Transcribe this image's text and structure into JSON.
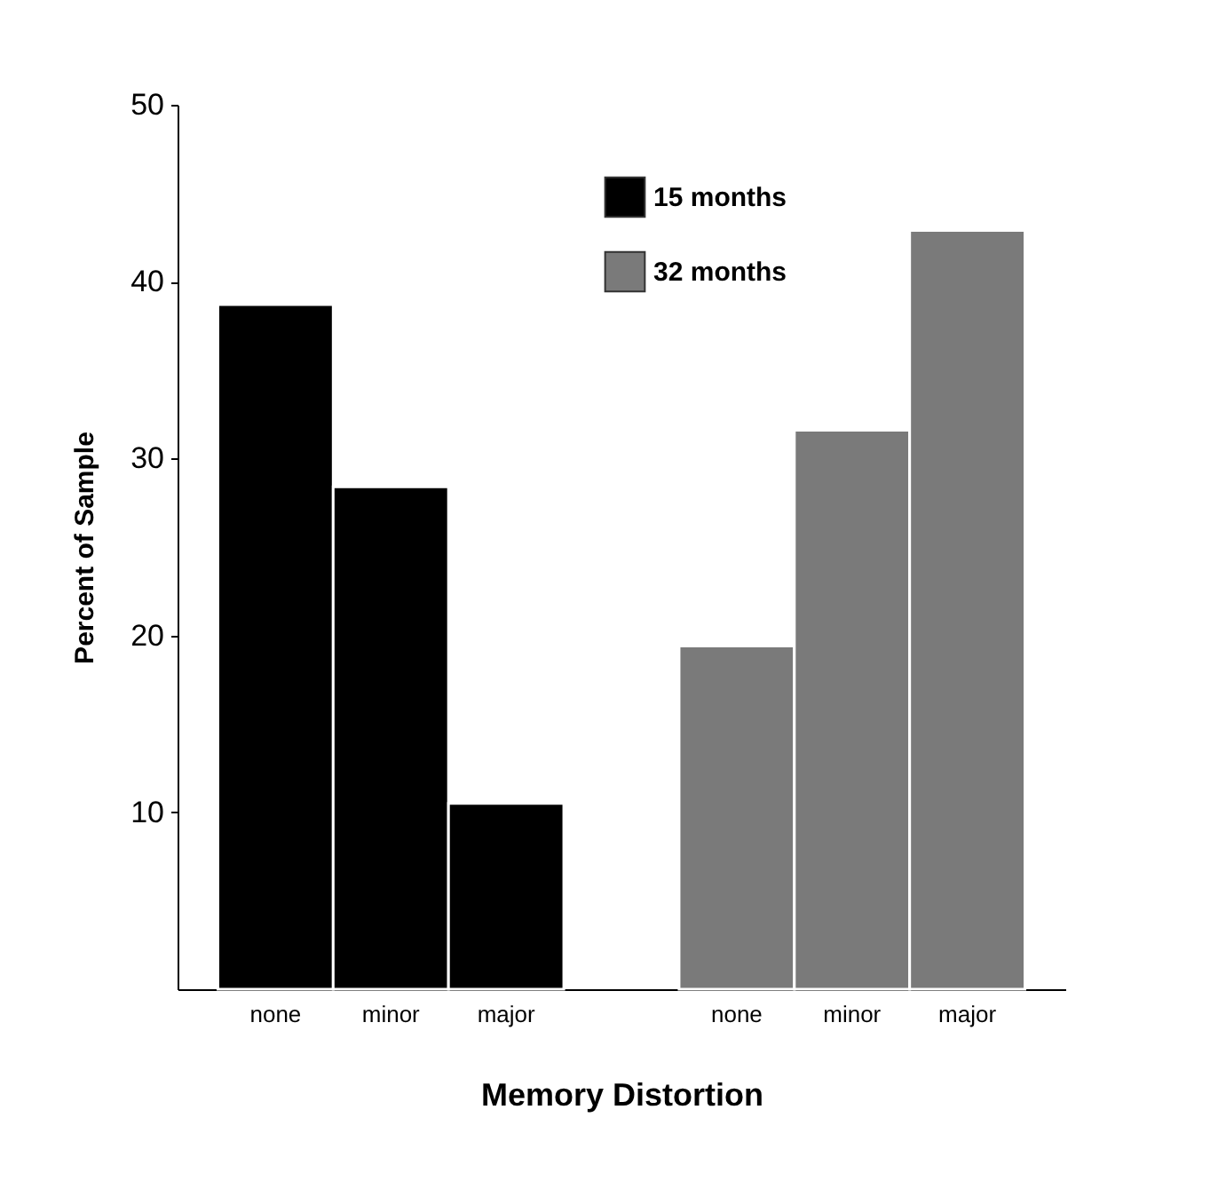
{
  "chart_data": {
    "type": "bar",
    "xlabel": "Memory Distortion",
    "ylabel": "Percent of Sample",
    "categories": [
      "none",
      "minor",
      "major",
      "none",
      "minor",
      "major"
    ],
    "series": [
      {
        "name": "15 months",
        "color": "#000000",
        "values": [
          38.7,
          28.4,
          10.5,
          null,
          null,
          null
        ]
      },
      {
        "name": "32 months",
        "color": "#7a7a7a",
        "values": [
          null,
          null,
          null,
          19.4,
          31.6,
          42.9
        ]
      }
    ],
    "ylim": [
      0,
      50
    ],
    "yticks": [
      10,
      20,
      30,
      40,
      50
    ],
    "legend": "top right"
  }
}
